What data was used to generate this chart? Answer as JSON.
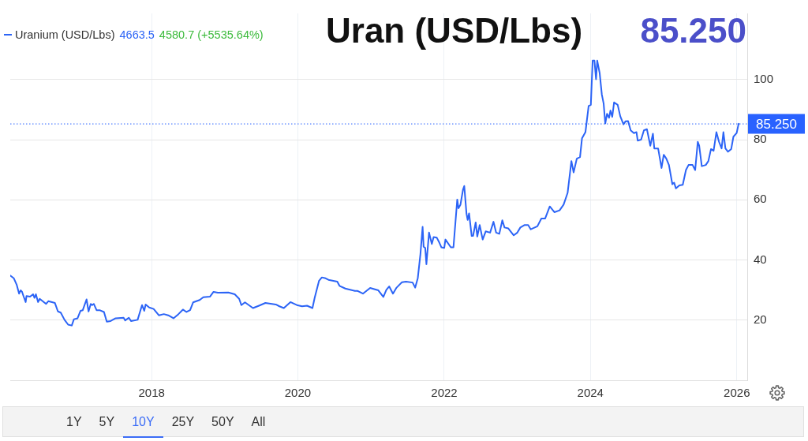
{
  "chart_data": {
    "type": "line",
    "title": "Uran (USD/Lbs)",
    "subtitle": "85.250",
    "x": [
      "2016-01-26",
      "2016-02-13",
      "2016-02-27",
      "2016-03-10",
      "2016-03-18",
      "2016-03-25",
      "2016-04-01",
      "2016-04-12",
      "2016-04-16",
      "2016-05-04",
      "2016-05-19",
      "2016-05-26",
      "2016-06-02",
      "2016-06-13",
      "2016-06-21",
      "2016-07-23",
      "2016-08-03",
      "2016-09-05",
      "2016-09-20",
      "2016-10-04",
      "2016-10-23",
      "2016-11-10",
      "2016-11-28",
      "2016-12-09",
      "2016-12-27",
      "2017-01-11",
      "2017-01-22",
      "2017-02-10",
      "2017-02-20",
      "2017-03-03",
      "2017-03-10",
      "2017-03-18",
      "2017-04-01",
      "2017-04-16",
      "2017-05-08",
      "2017-05-22",
      "2017-06-10",
      "2017-07-05",
      "2017-08-14",
      "2017-08-22",
      "2017-09-09",
      "2017-09-20",
      "2017-10-23",
      "2017-11-14",
      "2017-11-25",
      "2017-12-02",
      "2017-12-20",
      "2018-01-11",
      "2018-02-06",
      "2018-03-03",
      "2018-03-25",
      "2018-04-20",
      "2018-05-15",
      "2018-06-06",
      "2018-06-24",
      "2018-07-12",
      "2018-07-27",
      "2018-08-29",
      "2018-09-16",
      "2018-10-19",
      "2018-11-06",
      "2018-11-28",
      "2019-01-19",
      "2019-02-20",
      "2019-03-14",
      "2019-03-25",
      "2019-04-12",
      "2019-05-22",
      "2019-06-21",
      "2019-07-23",
      "2019-09-13",
      "2019-10-01",
      "2019-10-23",
      "2019-11-25",
      "2019-12-27",
      "2020-01-22",
      "2020-02-16",
      "2020-03-14",
      "2020-03-25",
      "2020-04-16",
      "2020-04-30",
      "2020-05-19",
      "2020-06-02",
      "2020-07-16",
      "2020-07-27",
      "2020-08-25",
      "2020-10-12",
      "2020-10-26",
      "2020-11-21",
      "2020-12-27",
      "2021-02-06",
      "2021-03-03",
      "2021-03-18",
      "2021-04-01",
      "2021-04-20",
      "2021-05-08",
      "2021-06-04",
      "2021-06-24",
      "2021-07-27",
      "2021-08-09",
      "2021-08-22",
      "2021-09-04",
      "2021-09-15",
      "2021-09-20",
      "2021-09-28",
      "2021-10-04",
      "2021-10-17",
      "2021-10-31",
      "2021-11-09",
      "2021-11-25",
      "2021-12-08",
      "2021-12-18",
      "2022-01-01",
      "2022-01-07",
      "2022-02-03",
      "2022-02-16",
      "2022-03-07",
      "2022-03-13",
      "2022-03-23",
      "2022-04-05",
      "2022-04-11",
      "2022-04-22",
      "2022-04-28",
      "2022-05-05",
      "2022-05-18",
      "2022-05-25",
      "2022-06-07",
      "2022-06-15",
      "2022-06-27",
      "2022-07-12",
      "2022-07-27",
      "2022-08-18",
      "2022-09-04",
      "2022-09-17",
      "2022-10-03",
      "2022-10-18",
      "2022-10-29",
      "2022-11-17",
      "2022-12-14",
      "2023-01-01",
      "2023-01-16",
      "2023-02-05",
      "2023-02-24",
      "2023-03-09",
      "2023-04-11",
      "2023-05-01",
      "2023-05-20",
      "2023-06-12",
      "2023-07-05",
      "2023-07-31",
      "2023-08-20",
      "2023-09-09",
      "2023-09-28",
      "2023-10-09",
      "2023-10-25",
      "2023-11-10",
      "2023-11-20",
      "2023-12-07",
      "2023-12-23",
      "2024-01-03",
      "2024-01-12",
      "2024-01-21",
      "2024-01-29",
      "2024-02-04",
      "2024-02-16",
      "2024-02-27",
      "2024-03-07",
      "2024-03-15",
      "2024-03-24",
      "2024-04-03",
      "2024-04-10",
      "2024-04-19",
      "2024-04-28",
      "2024-05-16",
      "2024-05-29",
      "2024-06-14",
      "2024-06-24",
      "2024-07-07",
      "2024-07-20",
      "2024-08-05",
      "2024-08-18",
      "2024-08-24",
      "2024-09-10",
      "2024-09-24",
      "2024-10-09",
      "2024-10-26",
      "2024-11-08",
      "2024-11-15",
      "2024-12-04",
      "2024-12-21",
      "2025-01-01",
      "2025-01-14",
      "2025-01-27",
      "2025-02-13",
      "2025-02-22",
      "2025-03-03",
      "2025-03-20",
      "2025-04-06",
      "2025-04-22",
      "2025-05-05",
      "2025-05-25",
      "2025-06-07",
      "2025-06-20",
      "2025-06-27",
      "2025-07-10",
      "2025-07-30",
      "2025-08-12",
      "2025-08-25",
      "2025-09-07",
      "2025-09-21",
      "2025-10-04",
      "2025-10-17",
      "2025-10-26",
      "2025-11-05",
      "2025-11-18",
      "2025-12-04",
      "2025-12-15",
      "2025-12-31",
      "2026-01-10"
    ],
    "series": [
      {
        "name": "Uranium (USD/Lbs)",
        "color": "#2c64f6",
        "values": [
          34.8,
          33.9,
          31.8,
          28.8,
          29.9,
          29.4,
          28.0,
          26.0,
          28.0,
          27.8,
          28.6,
          27.4,
          28.6,
          26.0,
          27.1,
          25.4,
          26.3,
          25.7,
          22.9,
          22.5,
          20.1,
          18.5,
          18.2,
          20.3,
          20.6,
          23.1,
          23.3,
          26.9,
          22.9,
          25.4,
          25.0,
          25.4,
          23.3,
          23.3,
          22.7,
          19.5,
          19.7,
          20.6,
          20.8,
          19.9,
          20.8,
          19.7,
          20.1,
          25.0,
          23.1,
          25.2,
          24.2,
          23.7,
          21.6,
          22.0,
          21.6,
          20.6,
          22.0,
          23.5,
          22.7,
          23.3,
          25.9,
          26.7,
          27.6,
          27.8,
          29.4,
          29.1,
          29.2,
          28.6,
          27.1,
          25.0,
          25.9,
          24.0,
          24.8,
          25.7,
          25.2,
          24.6,
          24.0,
          26.0,
          25.0,
          24.6,
          24.8,
          24.0,
          27.4,
          33.1,
          34.2,
          33.9,
          33.4,
          32.8,
          31.4,
          30.5,
          29.7,
          29.7,
          28.8,
          30.7,
          29.9,
          27.7,
          30.1,
          31.2,
          28.8,
          30.8,
          32.6,
          32.8,
          32.5,
          30.8,
          34.0,
          41.9,
          51.0,
          44.4,
          44.0,
          38.6,
          49.1,
          45.3,
          47.6,
          47.4,
          45.7,
          44.2,
          44.0,
          46.8,
          44.2,
          44.2,
          60.1,
          57.2,
          58.4,
          63.5,
          64.6,
          55.5,
          53.3,
          55.5,
          48.0,
          48.0,
          52.5,
          47.8,
          51.6,
          46.8,
          49.5,
          49.1,
          52.7,
          49.1,
          48.7,
          53.2,
          50.8,
          50.5,
          48.2,
          49.1,
          50.8,
          51.6,
          51.6,
          50.2,
          51.2,
          53.8,
          53.8,
          57.8,
          55.9,
          56.5,
          58.4,
          62.3,
          72.9,
          69.1,
          73.7,
          74.2,
          80.5,
          82.5,
          91.2,
          91.6,
          106.3,
          106.3,
          100.1,
          106.3,
          102.2,
          95.0,
          92.0,
          85.4,
          88.6,
          87.3,
          89.7,
          87.6,
          92.4,
          91.6,
          87.8,
          85.1,
          86.1,
          86.2,
          83.1,
          82.2,
          82.5,
          79.7,
          80.0,
          83.1,
          83.5,
          78.0,
          82.0,
          77.1,
          77.1,
          70.6,
          75.0,
          73.7,
          71.6,
          65.2,
          65.7,
          63.8,
          64.8,
          65.0,
          69.9,
          71.6,
          71.6,
          69.9,
          79.3,
          78.0,
          71.2,
          71.6,
          72.9,
          76.9,
          76.3,
          82.5,
          79.3,
          77.1,
          82.5,
          77.1,
          76.0,
          76.9,
          81.0,
          82.2,
          85.3
        ]
      }
    ],
    "xlim": [
      "2016-01-26",
      "2026-02-22"
    ],
    "xticks": [
      "2018",
      "2020",
      "2022",
      "2024",
      "2026"
    ],
    "ylim": [
      0,
      122
    ],
    "yticks": [
      20,
      40,
      60,
      80,
      100
    ],
    "ref_lines": [
      {
        "axis": "y",
        "value": 85.25,
        "label": "85.250",
        "color": "#2962ff",
        "line_style": "dotted"
      }
    ],
    "annotations": [
      "4663.5",
      "4580.7 (+5535.64%)",
      "1Y",
      "5Y",
      "10Y",
      "25Y",
      "50Y",
      "All"
    ],
    "grid": true,
    "legend": "top left"
  }
}
